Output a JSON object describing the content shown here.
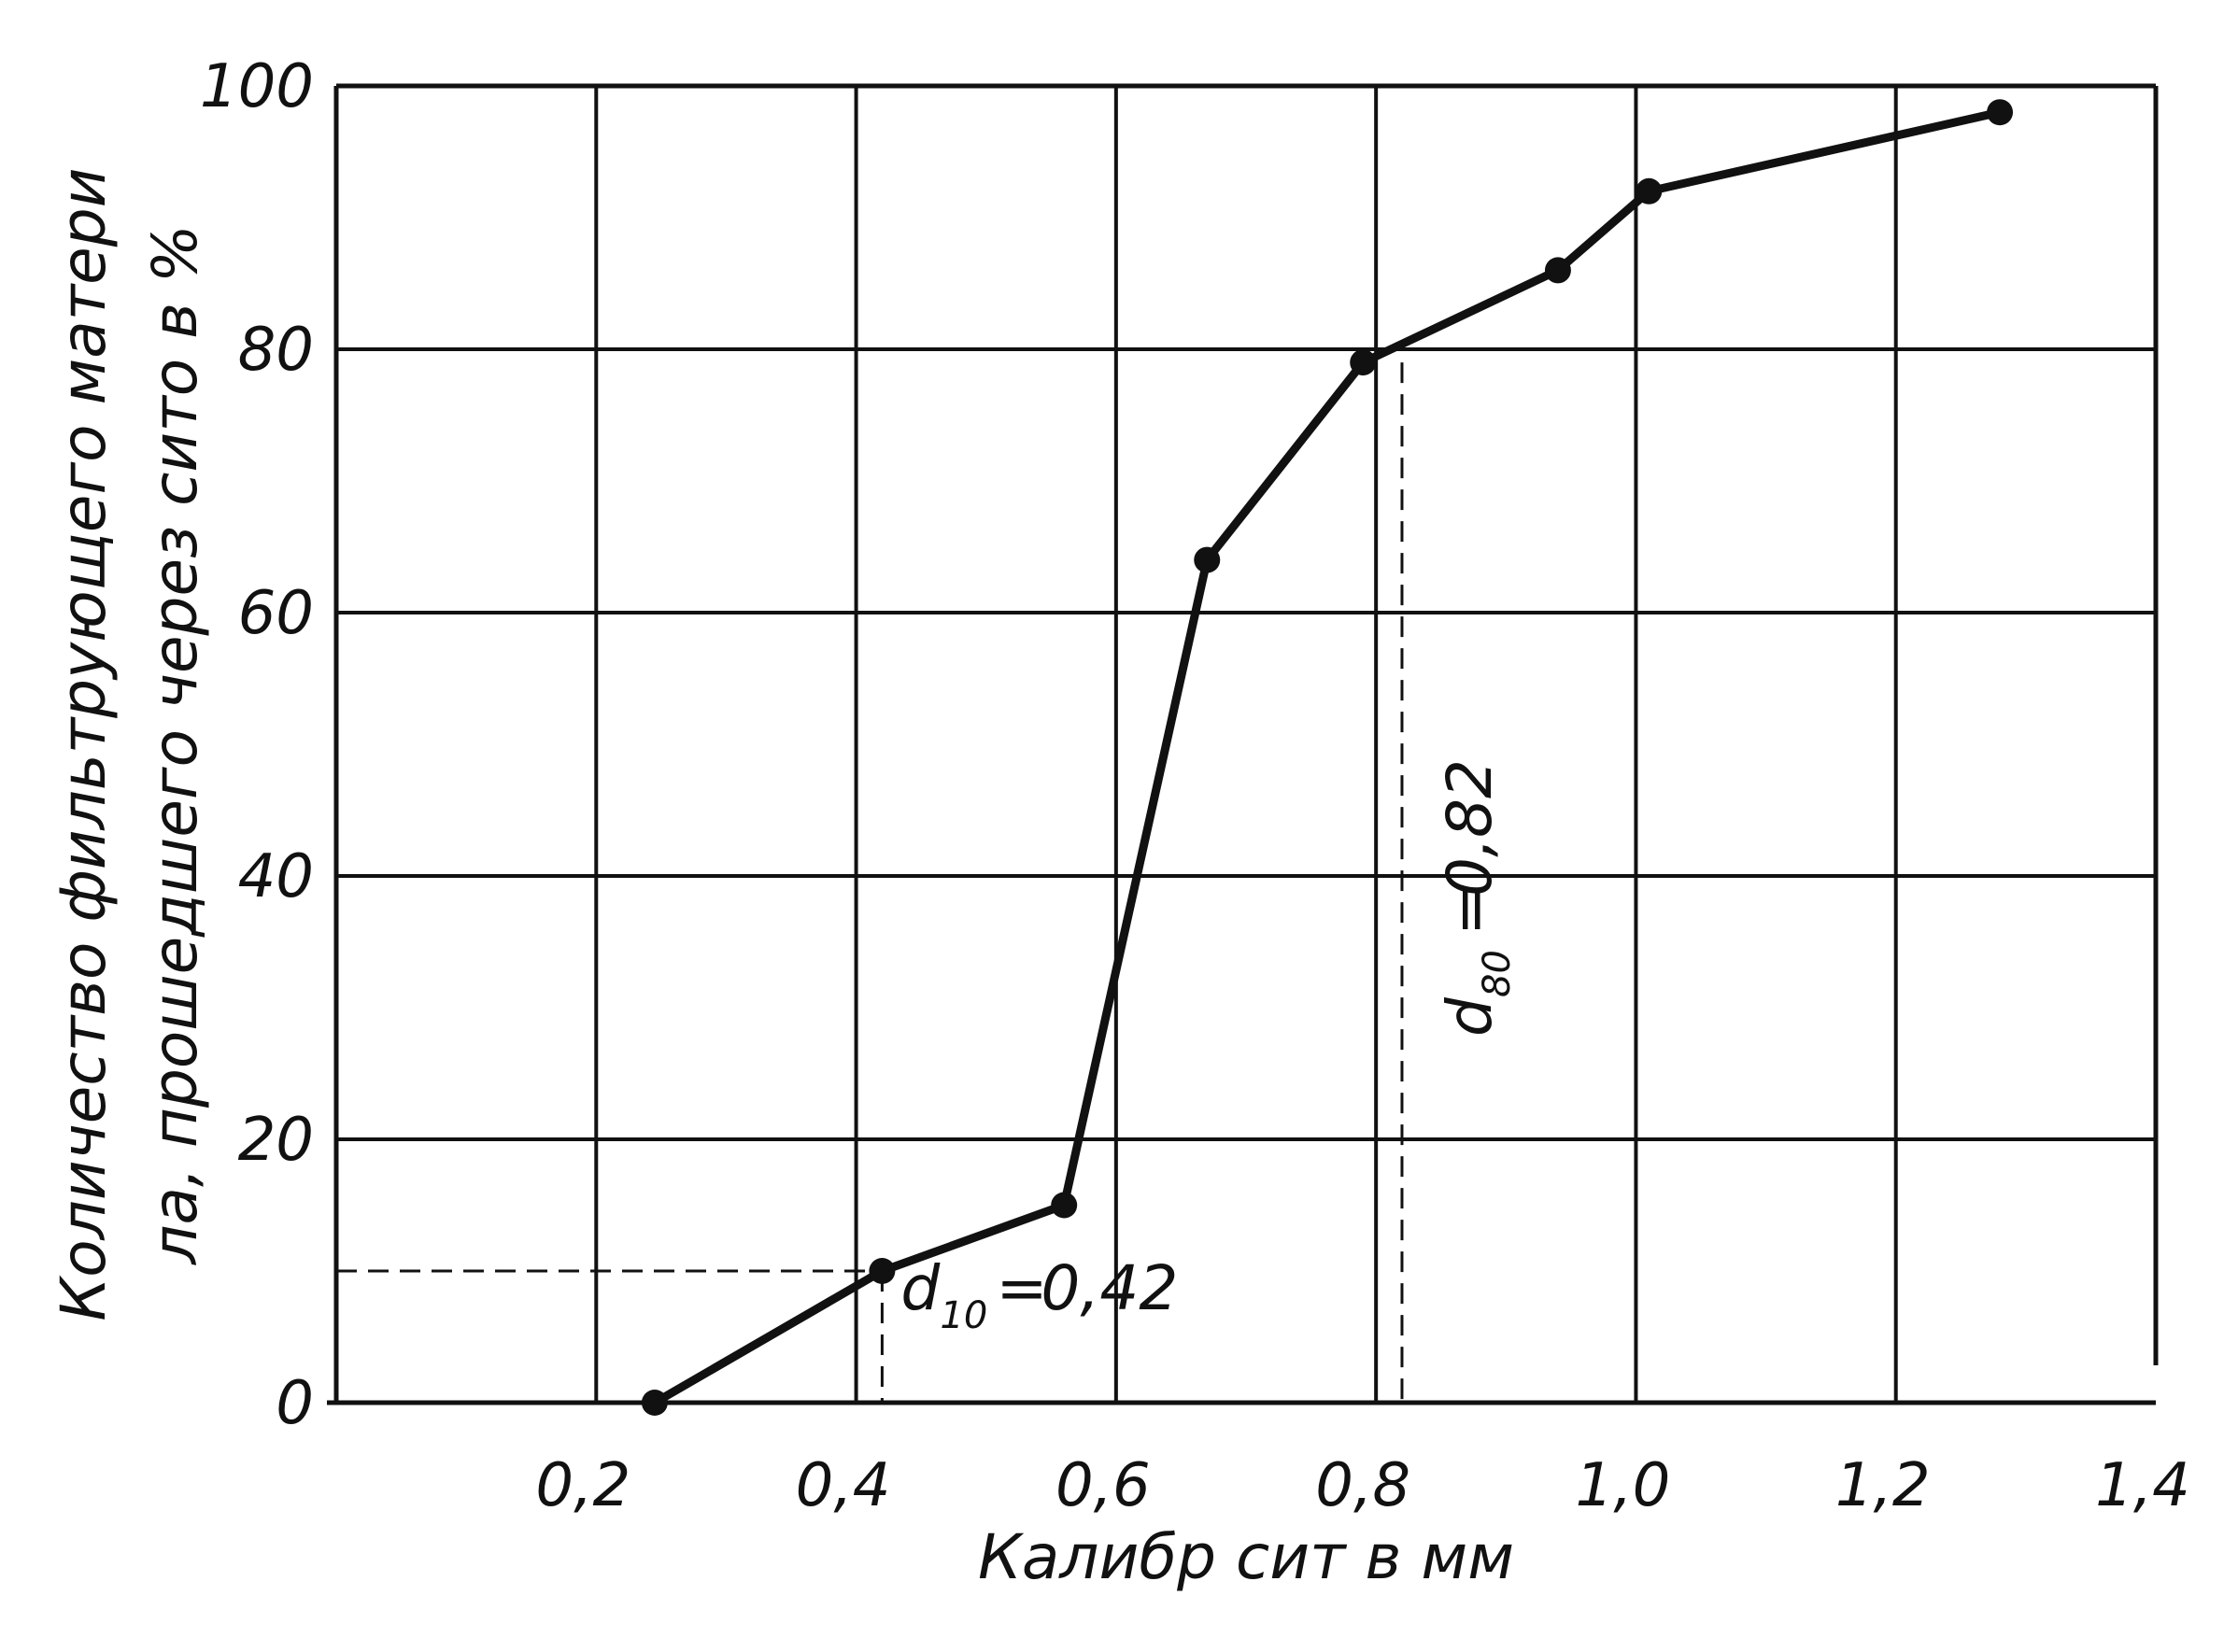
{
  "chart_data": {
    "type": "line",
    "xlabel": "Калибр сит в мм",
    "ylabel_lines": [
      "Количество фильтрующего матери",
      "ла, прошедшего через сито в %"
    ],
    "xlim": [
      0,
      1.4
    ],
    "ylim": [
      0,
      100
    ],
    "x_ticks": [
      0.2,
      0.4,
      0.6,
      0.8,
      1.0,
      1.2,
      1.4
    ],
    "x_tick_labels": [
      "0,2",
      "0,4",
      "0,6",
      "0,8",
      "1,0",
      "1,2",
      "1,4"
    ],
    "y_ticks": [
      0,
      20,
      40,
      60,
      80,
      100
    ],
    "y_tick_labels": [
      "0",
      "20",
      "40",
      "60",
      "80",
      "100"
    ],
    "grid": true,
    "series": [
      {
        "x": [
          0.245,
          0.42,
          0.56,
          0.67,
          0.79,
          0.94,
          1.01,
          1.28
        ],
        "y": [
          0,
          10,
          15,
          64,
          79,
          86,
          92,
          98
        ]
      }
    ],
    "annotations": [
      {
        "main": "d",
        "sub": "10",
        "value": "0,42",
        "x": 0.42,
        "y": 10
      },
      {
        "main": "d",
        "sub": "80",
        "value": "0,82",
        "x": 0.82,
        "y": 79
      },
      {
        "x": 0.6,
        "y": 25
      }
    ]
  }
}
